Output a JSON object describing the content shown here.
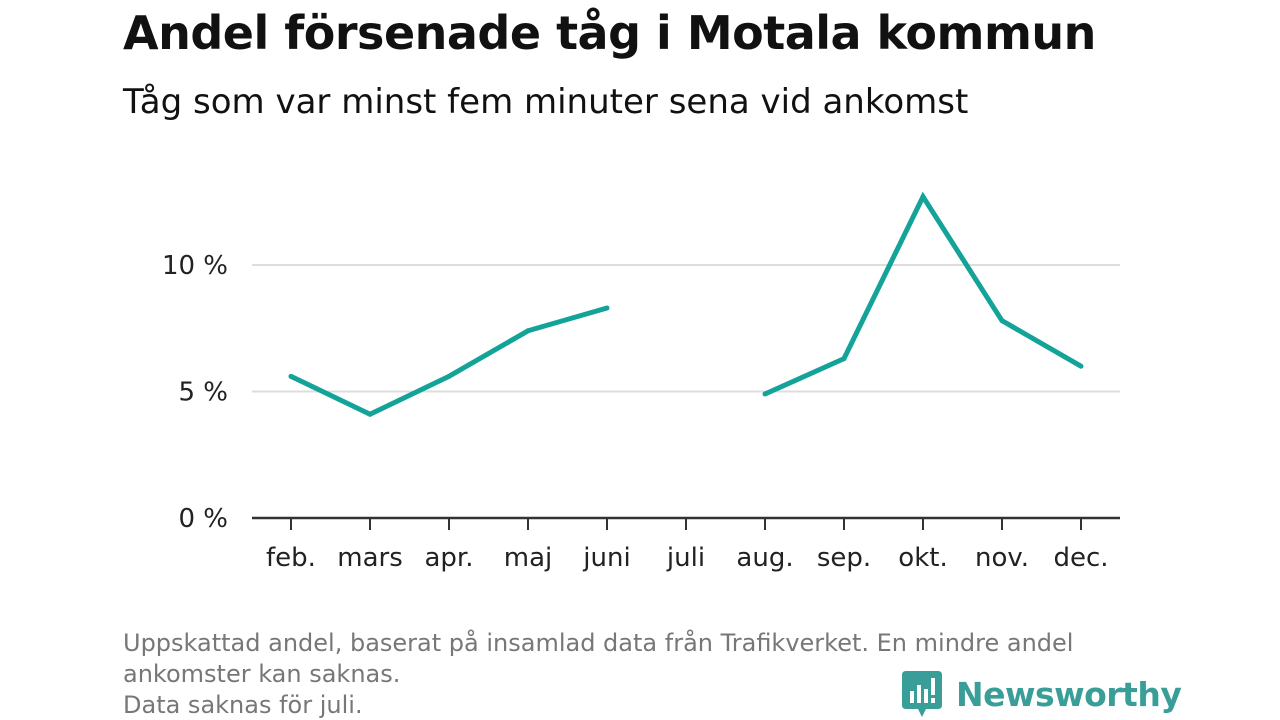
{
  "title": "Andel försenade tåg i Motala kommun",
  "subtitle": "Tåg som var minst fem minuter sena vid ankomst",
  "chart_data": {
    "type": "line",
    "categories": [
      "feb.",
      "mars",
      "apr.",
      "maj",
      "juni",
      "juli",
      "aug.",
      "sep.",
      "okt.",
      "nov.",
      "dec."
    ],
    "series": [
      {
        "values": [
          5.6,
          4.1,
          5.6,
          7.4,
          8.3,
          null,
          4.9,
          6.3,
          12.7,
          7.8,
          6.0
        ]
      }
    ],
    "ylim": [
      0,
      14
    ],
    "yticks": [
      0,
      5,
      10
    ],
    "ytick_labels": [
      "0 %",
      "5 %",
      "10 %"
    ],
    "xlabel": "",
    "ylabel": "",
    "grid": true,
    "line_color": "#13a399",
    "grid_color": "#dddddd",
    "axis_color": "#333333"
  },
  "footnote": {
    "line1": "Uppskattad andel, baserat på insamlad data från Trafikverket. En mindre andel",
    "line2": "ankomster kan saknas.",
    "line3": "Data saknas för juli."
  },
  "brand": {
    "name": "Newsworthy",
    "icon": "bar-chart-exclamation-icon",
    "color": "#3a9e98"
  }
}
